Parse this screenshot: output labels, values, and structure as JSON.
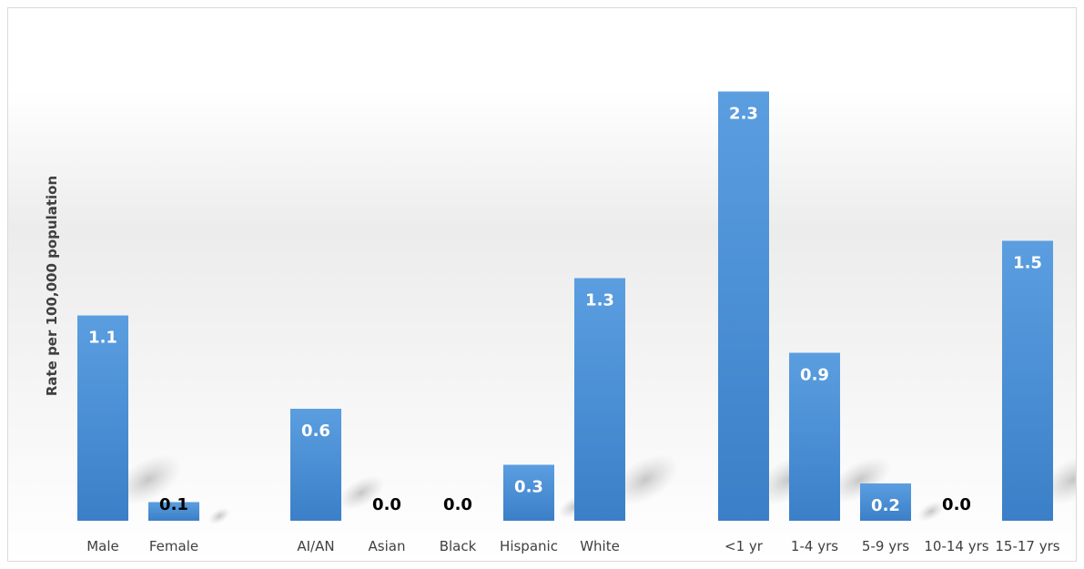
{
  "chart_data": {
    "type": "bar",
    "ylabel": "Rate per 100,000 population",
    "xlabel": "",
    "ylim": [
      0,
      2.5
    ],
    "grid": false,
    "legend": "none",
    "bar_color": "#4a8fd6",
    "groups": [
      {
        "categories": [
          "Male",
          "Female"
        ],
        "values": [
          1.1,
          0.1
        ],
        "labels": [
          "1.1",
          "0.1"
        ]
      },
      {
        "categories": [
          "AI/AN",
          "Asian",
          "Black",
          "Hispanic",
          "White"
        ],
        "values": [
          0.6,
          0.0,
          0.0,
          0.3,
          1.3
        ],
        "labels": [
          "0.6",
          "0.0",
          "0.0",
          "0.3",
          "1.3"
        ]
      },
      {
        "categories": [
          "<1 yr",
          "1-4 yrs",
          "5-9 yrs",
          "10-14 yrs",
          "15-17 yrs"
        ],
        "values": [
          2.3,
          0.9,
          0.2,
          0.0,
          1.5
        ],
        "labels": [
          "2.3",
          "0.9",
          "0.2",
          "0.0",
          "1.5"
        ]
      }
    ]
  }
}
